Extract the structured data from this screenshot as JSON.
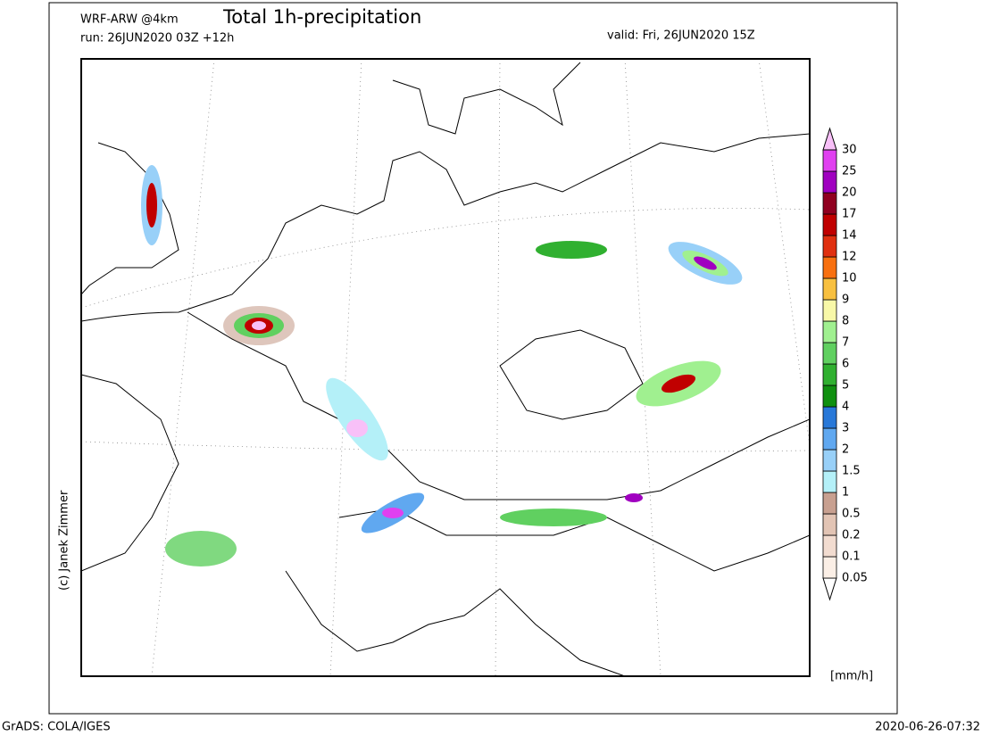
{
  "header": {
    "model": "WRF-ARW @4km",
    "title": "Total 1h-precipitation",
    "run": "run: 26JUN2020 03Z +12h",
    "valid": "valid: Fri, 26JUN2020 15Z"
  },
  "credit": "(c) Janek Zimmer",
  "colorbar": {
    "unit": "[mm/h]",
    "levels": [
      "0.05",
      "0.1",
      "0.2",
      "0.5",
      "1",
      "1.5",
      "2",
      "3",
      "4",
      "5",
      "6",
      "7",
      "8",
      "9",
      "10",
      "12",
      "14",
      "17",
      "20",
      "25",
      "30"
    ],
    "colors": [
      "#ffffff",
      "#fbefe6",
      "#f2dcd0",
      "#e2c4b4",
      "#c8a090",
      "#b4f0f8",
      "#98d0f8",
      "#60a8f0",
      "#2878d8",
      "#109010",
      "#30b030",
      "#60d060",
      "#a0f090",
      "#f8f8a8",
      "#f8c040",
      "#f87010",
      "#e03010",
      "#c00000",
      "#900020",
      "#a000c0",
      "#e040f0",
      "#f8c0f8"
    ]
  },
  "footer": {
    "left": "GrADS: COLA/IGES",
    "right": "2020-06-26-07:32"
  }
}
